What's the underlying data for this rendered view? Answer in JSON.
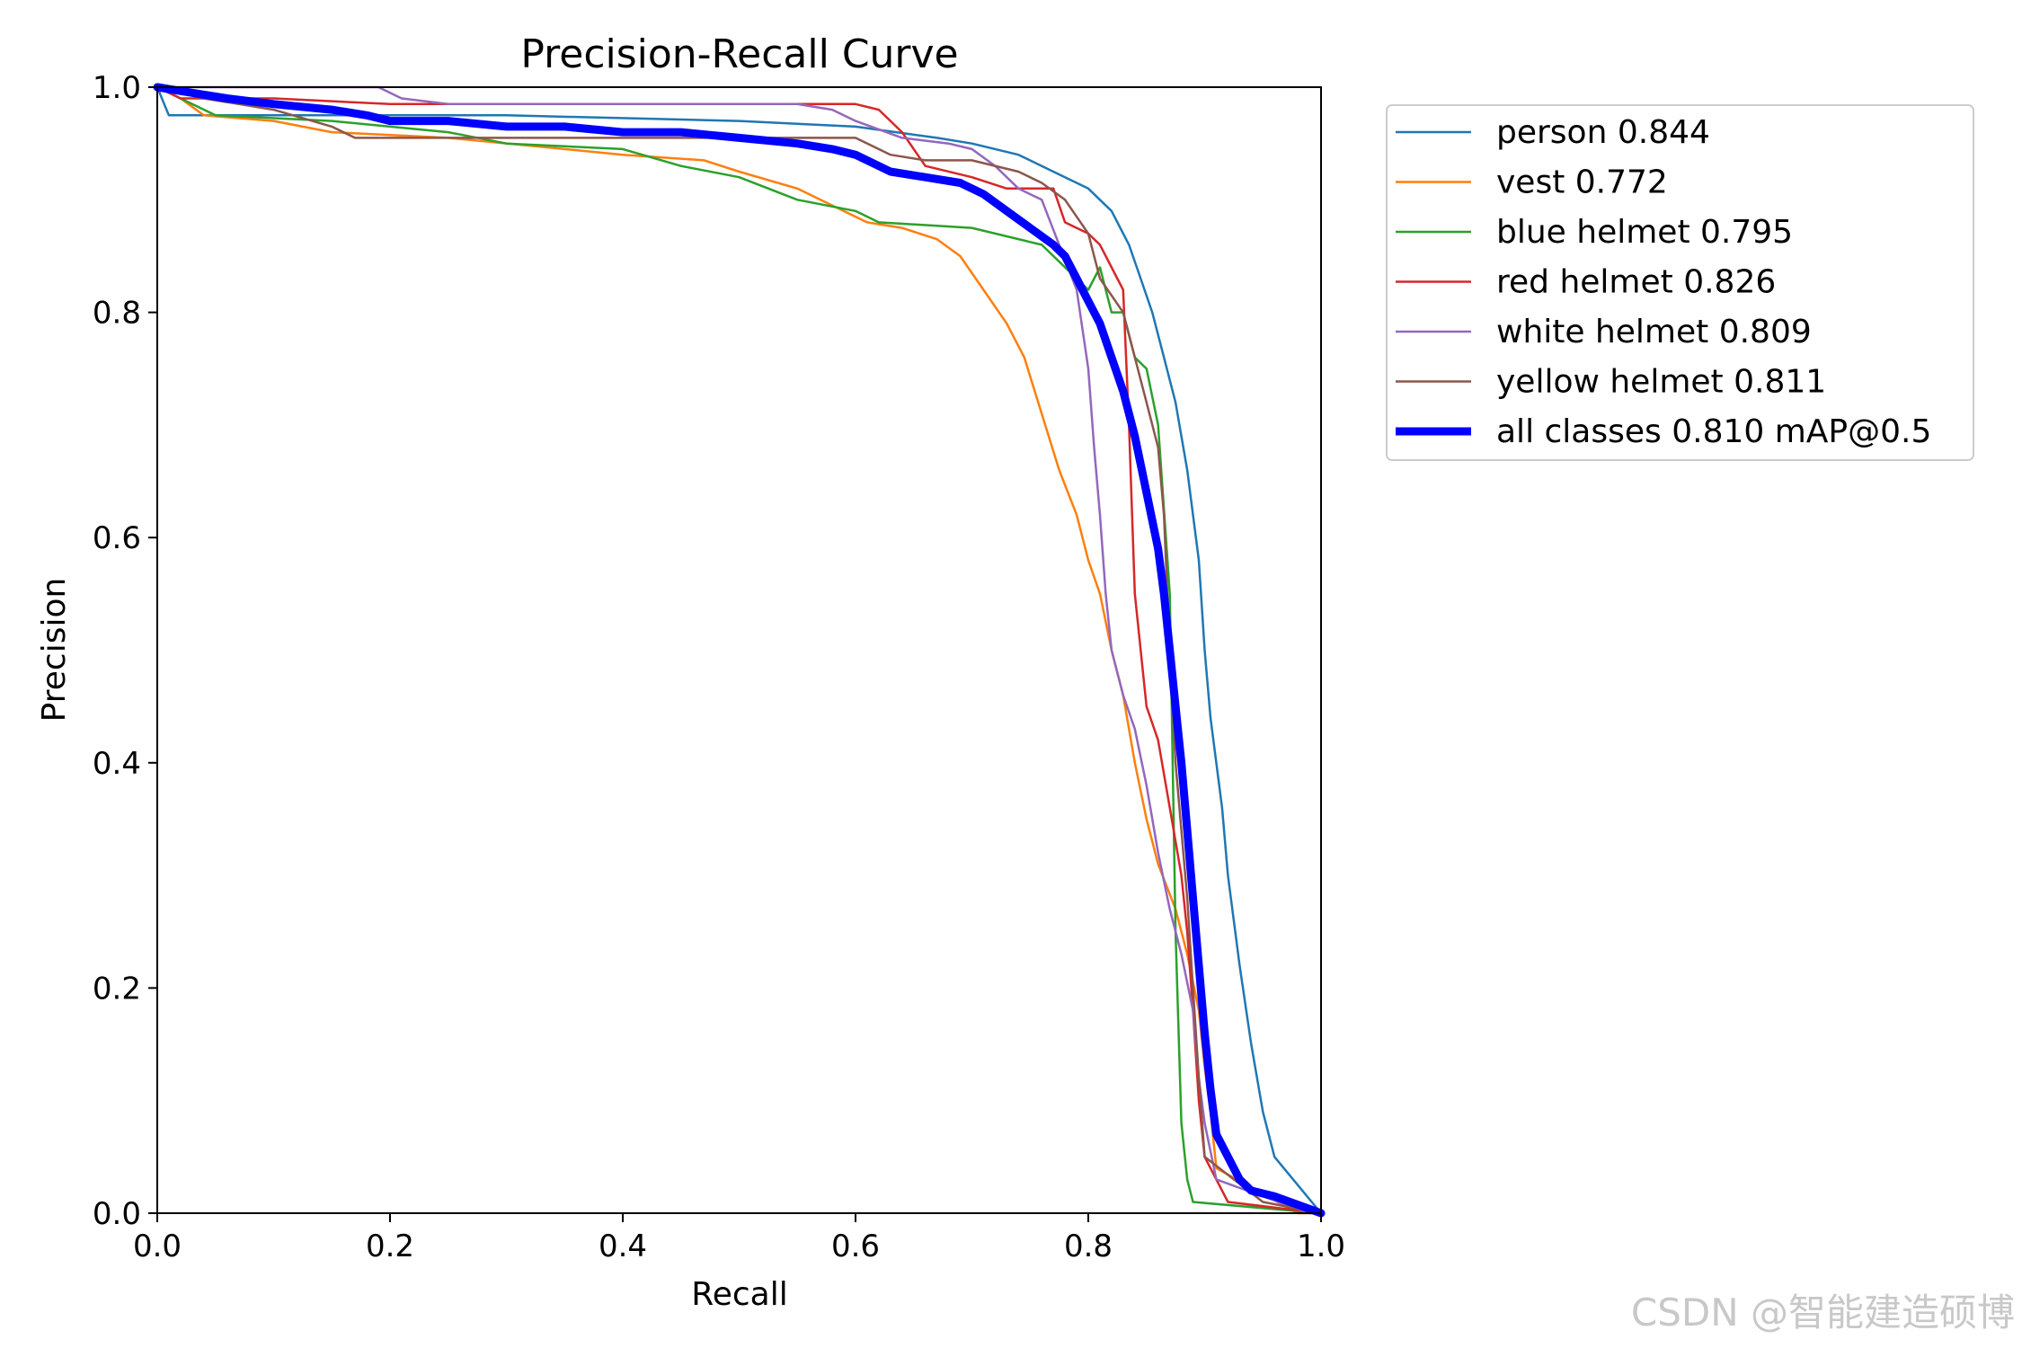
{
  "chart_data": {
    "type": "line",
    "title": "Precision-Recall Curve",
    "xlabel": "Recall",
    "ylabel": "Precision",
    "xlim": [
      0.0,
      1.0
    ],
    "ylim": [
      0.0,
      1.0
    ],
    "xticks": [
      "0.0",
      "0.2",
      "0.4",
      "0.6",
      "0.8",
      "1.0"
    ],
    "yticks": [
      "0.0",
      "0.2",
      "0.4",
      "0.6",
      "0.8",
      "1.0"
    ],
    "grid": false,
    "legend_position": "outside-top-right",
    "series": [
      {
        "name": "person 0.844",
        "color": "#1f77b4",
        "highlight": false,
        "points": [
          [
            0,
            1.0
          ],
          [
            0.01,
            0.975
          ],
          [
            0.1,
            0.975
          ],
          [
            0.3,
            0.975
          ],
          [
            0.5,
            0.97
          ],
          [
            0.6,
            0.965
          ],
          [
            0.67,
            0.955
          ],
          [
            0.7,
            0.95
          ],
          [
            0.74,
            0.94
          ],
          [
            0.76,
            0.93
          ],
          [
            0.78,
            0.92
          ],
          [
            0.8,
            0.91
          ],
          [
            0.82,
            0.89
          ],
          [
            0.835,
            0.86
          ],
          [
            0.845,
            0.83
          ],
          [
            0.855,
            0.8
          ],
          [
            0.865,
            0.76
          ],
          [
            0.875,
            0.72
          ],
          [
            0.885,
            0.66
          ],
          [
            0.895,
            0.58
          ],
          [
            0.9,
            0.5
          ],
          [
            0.905,
            0.44
          ],
          [
            0.915,
            0.36
          ],
          [
            0.92,
            0.3
          ],
          [
            0.93,
            0.22
          ],
          [
            0.94,
            0.15
          ],
          [
            0.95,
            0.09
          ],
          [
            0.96,
            0.05
          ],
          [
            1.0,
            0.0
          ]
        ]
      },
      {
        "name": "vest 0.772",
        "color": "#ff7f0e",
        "highlight": false,
        "points": [
          [
            0,
            1.0
          ],
          [
            0.02,
            0.99
          ],
          [
            0.04,
            0.975
          ],
          [
            0.1,
            0.97
          ],
          [
            0.15,
            0.96
          ],
          [
            0.25,
            0.955
          ],
          [
            0.35,
            0.945
          ],
          [
            0.4,
            0.94
          ],
          [
            0.47,
            0.935
          ],
          [
            0.5,
            0.925
          ],
          [
            0.55,
            0.91
          ],
          [
            0.58,
            0.895
          ],
          [
            0.61,
            0.88
          ],
          [
            0.64,
            0.875
          ],
          [
            0.67,
            0.865
          ],
          [
            0.69,
            0.85
          ],
          [
            0.71,
            0.82
          ],
          [
            0.73,
            0.79
          ],
          [
            0.745,
            0.76
          ],
          [
            0.76,
            0.71
          ],
          [
            0.775,
            0.66
          ],
          [
            0.79,
            0.62
          ],
          [
            0.8,
            0.58
          ],
          [
            0.81,
            0.55
          ],
          [
            0.82,
            0.5
          ],
          [
            0.83,
            0.46
          ],
          [
            0.84,
            0.4
          ],
          [
            0.85,
            0.35
          ],
          [
            0.86,
            0.31
          ],
          [
            0.875,
            0.27
          ],
          [
            0.885,
            0.23
          ],
          [
            0.895,
            0.18
          ],
          [
            0.9,
            0.13
          ],
          [
            0.905,
            0.09
          ],
          [
            0.91,
            0.04
          ],
          [
            0.98,
            0.0
          ],
          [
            1.0,
            0.0
          ]
        ]
      },
      {
        "name": "blue helmet 0.795",
        "color": "#2ca02c",
        "highlight": false,
        "points": [
          [
            0,
            1.0
          ],
          [
            0.05,
            0.975
          ],
          [
            0.15,
            0.97
          ],
          [
            0.25,
            0.96
          ],
          [
            0.3,
            0.95
          ],
          [
            0.4,
            0.945
          ],
          [
            0.45,
            0.93
          ],
          [
            0.5,
            0.92
          ],
          [
            0.55,
            0.9
          ],
          [
            0.6,
            0.89
          ],
          [
            0.62,
            0.88
          ],
          [
            0.7,
            0.875
          ],
          [
            0.76,
            0.86
          ],
          [
            0.79,
            0.83
          ],
          [
            0.8,
            0.82
          ],
          [
            0.81,
            0.84
          ],
          [
            0.815,
            0.82
          ],
          [
            0.82,
            0.8
          ],
          [
            0.83,
            0.8
          ],
          [
            0.84,
            0.76
          ],
          [
            0.85,
            0.75
          ],
          [
            0.86,
            0.7
          ],
          [
            0.87,
            0.55
          ],
          [
            0.875,
            0.25
          ],
          [
            0.88,
            0.08
          ],
          [
            0.885,
            0.03
          ],
          [
            0.89,
            0.01
          ],
          [
            1.0,
            0.0
          ]
        ]
      },
      {
        "name": "red helmet 0.826",
        "color": "#d62728",
        "highlight": false,
        "points": [
          [
            0,
            1.0
          ],
          [
            0.02,
            0.99
          ],
          [
            0.1,
            0.99
          ],
          [
            0.2,
            0.985
          ],
          [
            0.3,
            0.985
          ],
          [
            0.5,
            0.985
          ],
          [
            0.6,
            0.985
          ],
          [
            0.62,
            0.98
          ],
          [
            0.64,
            0.96
          ],
          [
            0.66,
            0.93
          ],
          [
            0.7,
            0.92
          ],
          [
            0.73,
            0.91
          ],
          [
            0.77,
            0.91
          ],
          [
            0.78,
            0.88
          ],
          [
            0.8,
            0.87
          ],
          [
            0.81,
            0.86
          ],
          [
            0.82,
            0.84
          ],
          [
            0.83,
            0.82
          ],
          [
            0.835,
            0.7
          ],
          [
            0.84,
            0.55
          ],
          [
            0.85,
            0.45
          ],
          [
            0.86,
            0.42
          ],
          [
            0.87,
            0.36
          ],
          [
            0.88,
            0.3
          ],
          [
            0.885,
            0.25
          ],
          [
            0.89,
            0.18
          ],
          [
            0.895,
            0.1
          ],
          [
            0.9,
            0.05
          ],
          [
            0.92,
            0.01
          ],
          [
            1.0,
            0.0
          ]
        ]
      },
      {
        "name": "white helmet 0.809",
        "color": "#9467bd",
        "highlight": false,
        "points": [
          [
            0,
            1.0
          ],
          [
            0.19,
            1.0
          ],
          [
            0.21,
            0.99
          ],
          [
            0.25,
            0.985
          ],
          [
            0.4,
            0.985
          ],
          [
            0.55,
            0.985
          ],
          [
            0.58,
            0.98
          ],
          [
            0.6,
            0.97
          ],
          [
            0.64,
            0.955
          ],
          [
            0.68,
            0.95
          ],
          [
            0.7,
            0.945
          ],
          [
            0.72,
            0.93
          ],
          [
            0.74,
            0.91
          ],
          [
            0.76,
            0.9
          ],
          [
            0.775,
            0.86
          ],
          [
            0.79,
            0.82
          ],
          [
            0.8,
            0.75
          ],
          [
            0.805,
            0.68
          ],
          [
            0.81,
            0.62
          ],
          [
            0.815,
            0.55
          ],
          [
            0.82,
            0.5
          ],
          [
            0.83,
            0.46
          ],
          [
            0.84,
            0.43
          ],
          [
            0.85,
            0.38
          ],
          [
            0.86,
            0.32
          ],
          [
            0.87,
            0.27
          ],
          [
            0.88,
            0.23
          ],
          [
            0.89,
            0.18
          ],
          [
            0.895,
            0.12
          ],
          [
            0.9,
            0.08
          ],
          [
            0.91,
            0.03
          ],
          [
            0.99,
            0.0
          ],
          [
            1.0,
            0.0
          ]
        ]
      },
      {
        "name": "yellow helmet 0.811",
        "color": "#8c564b",
        "highlight": false,
        "points": [
          [
            0,
            1.0
          ],
          [
            0.04,
            0.99
          ],
          [
            0.1,
            0.98
          ],
          [
            0.15,
            0.965
          ],
          [
            0.17,
            0.955
          ],
          [
            0.3,
            0.955
          ],
          [
            0.4,
            0.955
          ],
          [
            0.55,
            0.955
          ],
          [
            0.6,
            0.955
          ],
          [
            0.63,
            0.94
          ],
          [
            0.66,
            0.935
          ],
          [
            0.7,
            0.935
          ],
          [
            0.74,
            0.925
          ],
          [
            0.76,
            0.915
          ],
          [
            0.78,
            0.9
          ],
          [
            0.8,
            0.87
          ],
          [
            0.81,
            0.83
          ],
          [
            0.83,
            0.8
          ],
          [
            0.84,
            0.76
          ],
          [
            0.85,
            0.72
          ],
          [
            0.86,
            0.68
          ],
          [
            0.865,
            0.62
          ],
          [
            0.87,
            0.5
          ],
          [
            0.875,
            0.4
          ],
          [
            0.88,
            0.34
          ],
          [
            0.885,
            0.28
          ],
          [
            0.89,
            0.2
          ],
          [
            0.895,
            0.12
          ],
          [
            0.9,
            0.05
          ],
          [
            0.95,
            0.01
          ],
          [
            1.0,
            0.0
          ]
        ]
      },
      {
        "name": "all classes 0.810 mAP@0.5",
        "color": "#0000ff",
        "highlight": true,
        "points": [
          [
            0,
            1.0
          ],
          [
            0.03,
            0.995
          ],
          [
            0.06,
            0.99
          ],
          [
            0.1,
            0.985
          ],
          [
            0.15,
            0.98
          ],
          [
            0.18,
            0.975
          ],
          [
            0.2,
            0.97
          ],
          [
            0.25,
            0.97
          ],
          [
            0.3,
            0.965
          ],
          [
            0.35,
            0.965
          ],
          [
            0.4,
            0.96
          ],
          [
            0.45,
            0.96
          ],
          [
            0.5,
            0.955
          ],
          [
            0.55,
            0.95
          ],
          [
            0.58,
            0.945
          ],
          [
            0.6,
            0.94
          ],
          [
            0.63,
            0.925
          ],
          [
            0.66,
            0.92
          ],
          [
            0.69,
            0.915
          ],
          [
            0.71,
            0.905
          ],
          [
            0.73,
            0.89
          ],
          [
            0.75,
            0.875
          ],
          [
            0.77,
            0.86
          ],
          [
            0.78,
            0.85
          ],
          [
            0.79,
            0.83
          ],
          [
            0.8,
            0.81
          ],
          [
            0.81,
            0.79
          ],
          [
            0.82,
            0.76
          ],
          [
            0.83,
            0.73
          ],
          [
            0.84,
            0.69
          ],
          [
            0.85,
            0.64
          ],
          [
            0.86,
            0.59
          ],
          [
            0.865,
            0.55
          ],
          [
            0.87,
            0.5
          ],
          [
            0.875,
            0.45
          ],
          [
            0.88,
            0.4
          ],
          [
            0.885,
            0.34
          ],
          [
            0.89,
            0.28
          ],
          [
            0.895,
            0.22
          ],
          [
            0.9,
            0.16
          ],
          [
            0.905,
            0.11
          ],
          [
            0.91,
            0.07
          ],
          [
            0.92,
            0.05
          ],
          [
            0.93,
            0.03
          ],
          [
            0.94,
            0.02
          ],
          [
            0.96,
            0.015
          ],
          [
            1.0,
            0.0
          ]
        ]
      }
    ]
  },
  "watermark": "CSDN @智能建造硕博"
}
